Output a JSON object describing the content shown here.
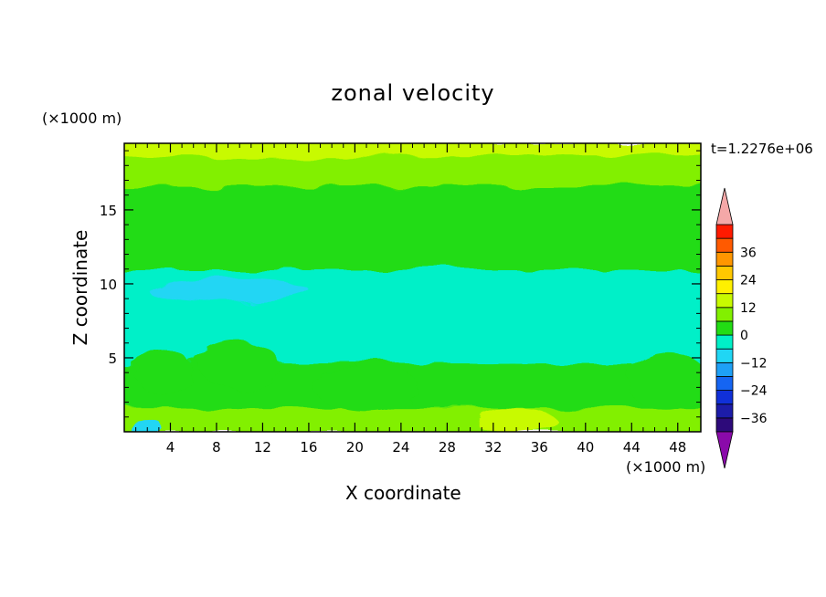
{
  "chart_data": {
    "type": "heatmap",
    "title": "zonal velocity",
    "xlabel": "X coordinate",
    "ylabel": "Z coordinate",
    "x_unit": "(×1000 m)",
    "y_unit": "(×1000 m)",
    "time_label": "t=1.2276e+06",
    "xlim": [
      0,
      50
    ],
    "ylim": [
      0,
      19.5
    ],
    "x_ticks": [
      4,
      8,
      12,
      16,
      20,
      24,
      28,
      32,
      36,
      40,
      44,
      48
    ],
    "y_ticks": [
      5,
      10,
      15
    ],
    "colorbar": {
      "levels": [
        -42,
        -36,
        -30,
        -24,
        -18,
        -12,
        -6,
        0,
        6,
        12,
        18,
        24,
        30,
        36,
        42
      ],
      "tick_labels": [
        "36",
        "24",
        "12",
        "0",
        "−12",
        "−24",
        "−36"
      ],
      "colors": [
        "#2d0a7a",
        "#1c1ca8",
        "#1030d8",
        "#1565f2",
        "#1ea0f6",
        "#20d6f4",
        "#00f0c8",
        "#22dc14",
        "#82f000",
        "#c8fa00",
        "#fff000",
        "#ffc800",
        "#ff9600",
        "#ff5a00",
        "#ff1a00"
      ],
      "under_color": "#8a0aaa",
      "over_color": "#f4a8a8"
    },
    "field_regions": [
      {
        "z_range": [
          18.5,
          19.5
        ],
        "value": 12,
        "description": "yellow-green band at top"
      },
      {
        "z_range": [
          16.5,
          18.5
        ],
        "value": 9
      },
      {
        "z_range": [
          11.2,
          16.5
        ],
        "value": 5
      },
      {
        "z_range": [
          10.8,
          11.2
        ],
        "value": 2
      },
      {
        "z_range": [
          7.0,
          10.8
        ],
        "value": -4
      },
      {
        "z_range": [
          4.5,
          7.0
        ],
        "value": -2
      },
      {
        "z_range": [
          1.5,
          4.5
        ],
        "value": 0
      },
      {
        "z_range": [
          0,
          1.5
        ],
        "value": 8
      }
    ]
  }
}
